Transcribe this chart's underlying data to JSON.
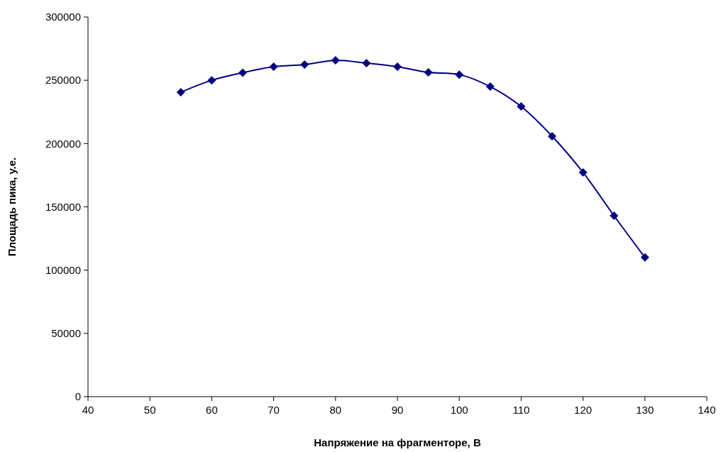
{
  "chart_data": {
    "type": "line",
    "xlabel": "Напряжение на фрагменторе, В",
    "ylabel": "Площадь пика, у.е.",
    "x": [
      55,
      60,
      65,
      70,
      75,
      80,
      85,
      90,
      95,
      100,
      105,
      110,
      115,
      120,
      125,
      130
    ],
    "series": [
      {
        "color": "#000080",
        "values": [
          240600,
          250000,
          256000,
          260700,
          262400,
          265800,
          263600,
          260700,
          256200,
          254500,
          245000,
          229300,
          205800,
          177200,
          143000,
          110000
        ]
      }
    ],
    "xlim": [
      40,
      140
    ],
    "xticks": [
      40,
      50,
      60,
      70,
      80,
      90,
      100,
      110,
      120,
      130,
      140
    ],
    "ylim": [
      0,
      300000
    ],
    "yticks": [
      0,
      50000,
      100000,
      150000,
      200000,
      250000,
      300000
    ],
    "marker": "diamond"
  }
}
